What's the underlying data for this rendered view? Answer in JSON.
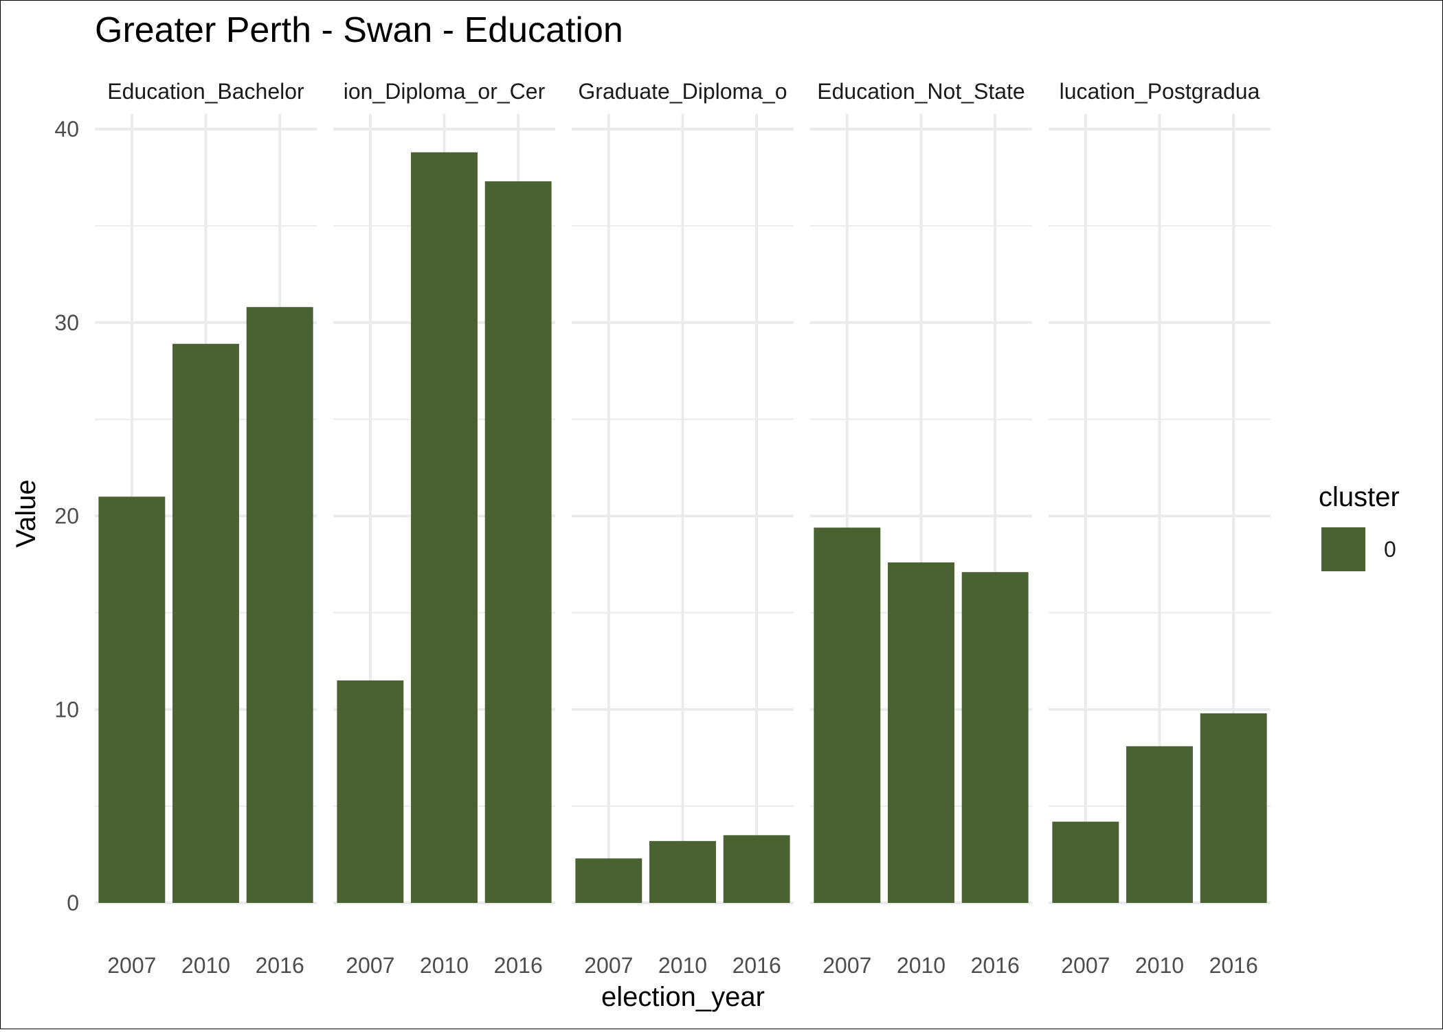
{
  "chart_data": {
    "type": "bar",
    "title": "Greater Perth - Swan - Education",
    "xlabel": "election_year",
    "ylabel": "Value",
    "ylim": [
      0,
      40
    ],
    "yticks": [
      "0",
      "10",
      "20",
      "30",
      "40"
    ],
    "categories": [
      "2007",
      "2010",
      "2016"
    ],
    "grid": true,
    "bar_color": "#4a6132",
    "legend": {
      "title": "cluster",
      "placement": "right",
      "entries": [
        {
          "label": "0",
          "color": "#4a6132"
        }
      ]
    },
    "facets": [
      {
        "label": "Education_Bachelor",
        "values": [
          21.0,
          28.9,
          30.8
        ]
      },
      {
        "label": "ion_Diploma_or_Cer",
        "values": [
          11.5,
          38.8,
          37.3
        ]
      },
      {
        "label": "Graduate_Diploma_o",
        "values": [
          2.3,
          3.2,
          3.5
        ]
      },
      {
        "label": "Education_Not_State",
        "values": [
          19.4,
          17.6,
          17.1
        ]
      },
      {
        "label": "lucation_Postgradua",
        "values": [
          4.2,
          8.1,
          9.8
        ]
      }
    ]
  }
}
